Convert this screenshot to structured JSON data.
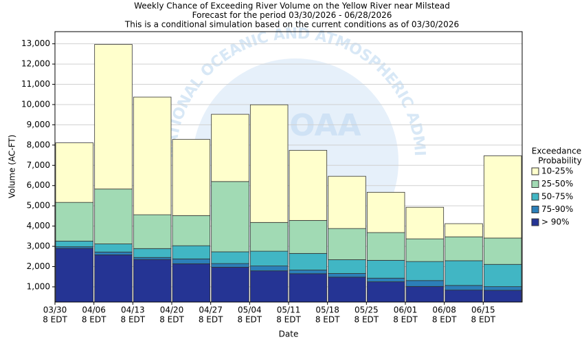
{
  "chart_data": {
    "type": "stacked_bar",
    "title": [
      "Weekly Chance of Exceeding River Volume on the Yellow River near Milstead",
      "Forecast for the period 03/30/2026 - 06/28/2026",
      "This is a conditional simulation based on the current conditions as of 03/30/2026"
    ],
    "watermark": "NATIONAL OCEANIC AND ATMOSPHERIC ADMINISTRATION",
    "watermark_logo": "NOAA",
    "x_label": "Date",
    "y_label": "Volume (AC-FT)",
    "legend_title": [
      "Exceedance",
      "Probability"
    ],
    "categories": [
      [
        "03/30",
        "8 EDT"
      ],
      [
        "04/06",
        "8 EDT"
      ],
      [
        "04/13",
        "8 EDT"
      ],
      [
        "04/20",
        "8 EDT"
      ],
      [
        "04/27",
        "8 EDT"
      ],
      [
        "05/04",
        "8 EDT"
      ],
      [
        "05/11",
        "8 EDT"
      ],
      [
        "05/18",
        "8 EDT"
      ],
      [
        "05/25",
        "8 EDT"
      ],
      [
        "06/01",
        "8 EDT"
      ],
      [
        "06/08",
        "8 EDT"
      ],
      [
        "06/15",
        "8 EDT"
      ]
    ],
    "series": [
      {
        "name": "10-25%",
        "color": "#ffffcc",
        "values": [
          2940,
          7140,
          5810,
          3760,
          3320,
          5810,
          3460,
          2580,
          1990,
          1560,
          650,
          4060
        ]
      },
      {
        "name": "25-50%",
        "color": "#a1dab4",
        "values": [
          1910,
          2710,
          1670,
          1490,
          3470,
          1420,
          1630,
          1540,
          1370,
          1120,
          1180,
          1300
        ]
      },
      {
        "name": "50-75%",
        "color": "#41b6c4",
        "values": [
          280,
          400,
          440,
          650,
          580,
          730,
          820,
          680,
          880,
          940,
          1220,
          1100
        ]
      },
      {
        "name": "75-90%",
        "color": "#2c7fb8",
        "values": [
          80,
          140,
          100,
          240,
          180,
          240,
          180,
          180,
          180,
          290,
          230,
          180
        ]
      },
      {
        "name": "> 90%",
        "color": "#253494",
        "values": [
          2900,
          2580,
          2350,
          2140,
          1970,
          1790,
          1650,
          1480,
          1250,
          1020,
          840,
          830
        ]
      }
    ],
    "ylim": [
      250,
      13600
    ],
    "yticks": [
      {
        "value": 1000,
        "label": "1,000"
      },
      {
        "value": 2000,
        "label": "2,000"
      },
      {
        "value": 3000,
        "label": "3,000"
      },
      {
        "value": 4000,
        "label": "4,000"
      },
      {
        "value": 5000,
        "label": "5,000"
      },
      {
        "value": 6000,
        "label": "6,000"
      },
      {
        "value": 7000,
        "label": "7,000"
      },
      {
        "value": 8000,
        "label": "8,000"
      },
      {
        "value": 9000,
        "label": "9,000"
      },
      {
        "value": 10000,
        "label": "10,000"
      },
      {
        "value": 11000,
        "label": "11,000"
      },
      {
        "value": 12000,
        "label": "12,000"
      },
      {
        "value": 13000,
        "label": "13,000"
      }
    ],
    "grid": true
  }
}
